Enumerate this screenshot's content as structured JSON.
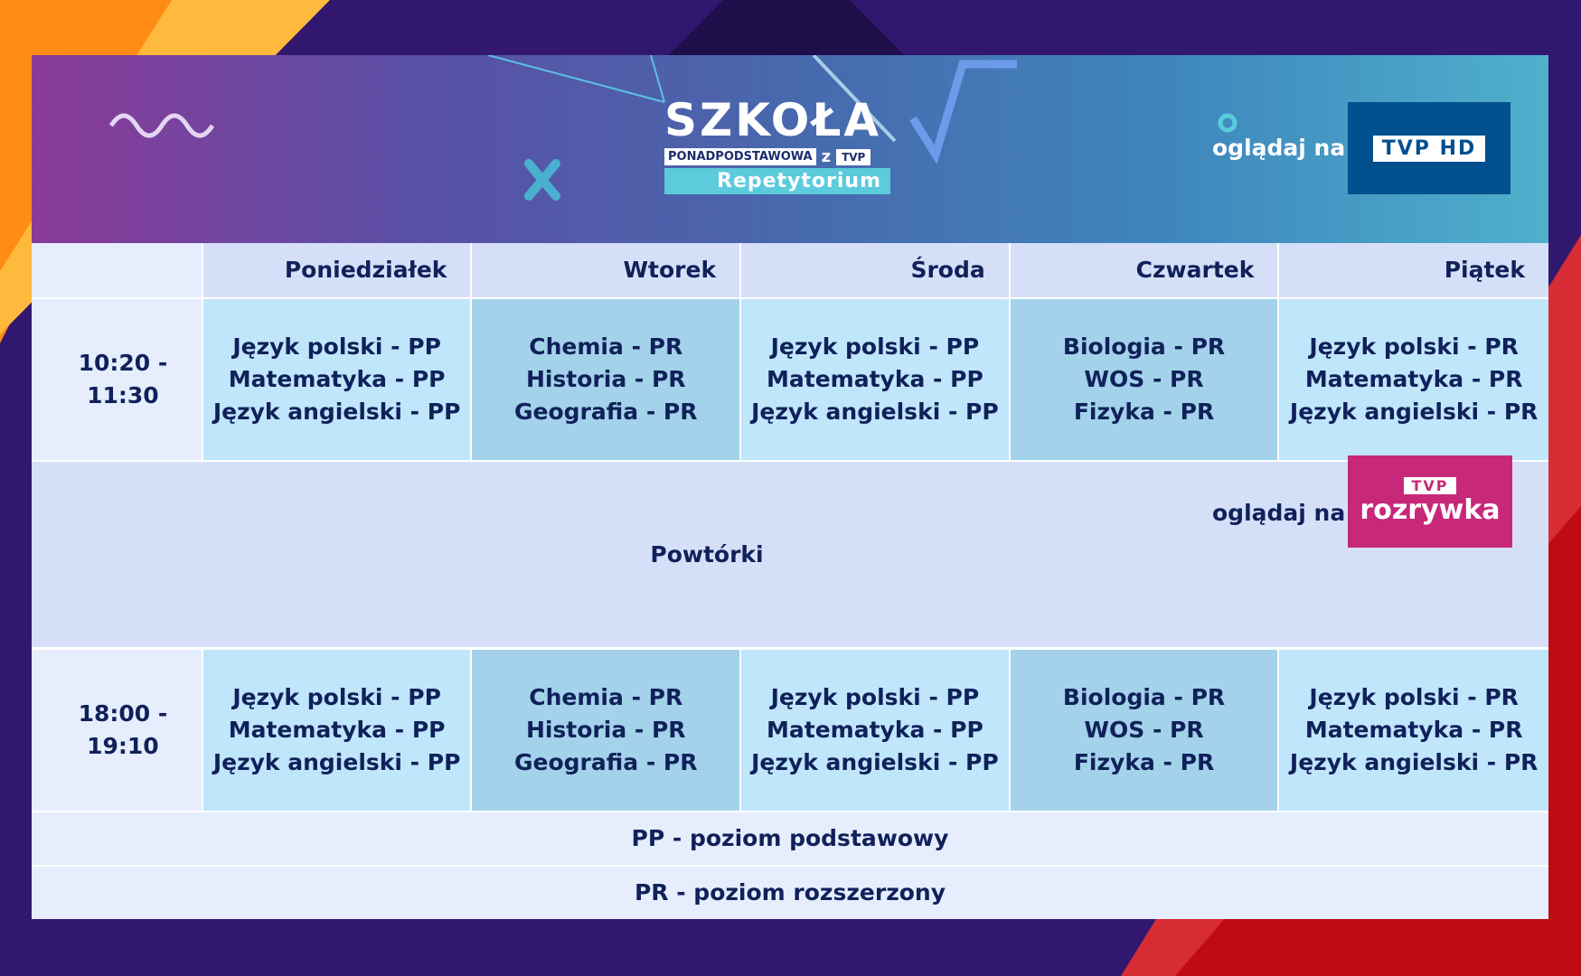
{
  "header": {
    "logo": {
      "title": "SZKOŁA",
      "subtitle": "PONADPODSTAWOWA",
      "z": "z",
      "brand": "TVP",
      "series": "Repetytorium"
    },
    "watch_label": "oglądaj na",
    "channel": "TVP HD"
  },
  "days": [
    "Poniedziałek",
    "Wtorek",
    "Środa",
    "Czwartek",
    "Piątek"
  ],
  "slots": [
    {
      "time": "10:20 - 11:30",
      "lessons": [
        [
          "Język polski - PP",
          "Matematyka - PP",
          "Język angielski - PP"
        ],
        [
          "Chemia - PR",
          "Historia - PR",
          "Geografia - PR"
        ],
        [
          "Język polski - PP",
          "Matematyka - PP",
          "Język angielski - PP"
        ],
        [
          "Biologia - PR",
          "WOS - PR",
          "Fizyka - PR"
        ],
        [
          "Język polski - PR",
          "Matematyka - PR",
          "Język angielski - PR"
        ]
      ]
    },
    {
      "time": "18:00 - 19:10",
      "lessons": [
        [
          "Język polski - PP",
          "Matematyka - PP",
          "Język angielski - PP"
        ],
        [
          "Chemia - PR",
          "Historia - PR",
          "Geografia - PR"
        ],
        [
          "Język polski - PP",
          "Matematyka - PP",
          "Język angielski - PP"
        ],
        [
          "Biologia - PR",
          "WOS - PR",
          "Fizyka - PR"
        ],
        [
          "Język polski - PR",
          "Matematyka - PR",
          "Język angielski - PR"
        ]
      ]
    }
  ],
  "repeats": {
    "label": "Powtórki",
    "watch_label": "oglądaj na",
    "channel_brand": "TVP",
    "channel_name": "rozrywka"
  },
  "legend": [
    "PP - poziom podstawowy",
    "PR - poziom rozszerzony"
  ],
  "colors": {
    "text": "#10215a",
    "cell_light": "#bfe6fb",
    "cell_dark": "#a3d2ea",
    "tvp_hd": "#03508e",
    "tvp_rozrywka": "#c8287a"
  }
}
